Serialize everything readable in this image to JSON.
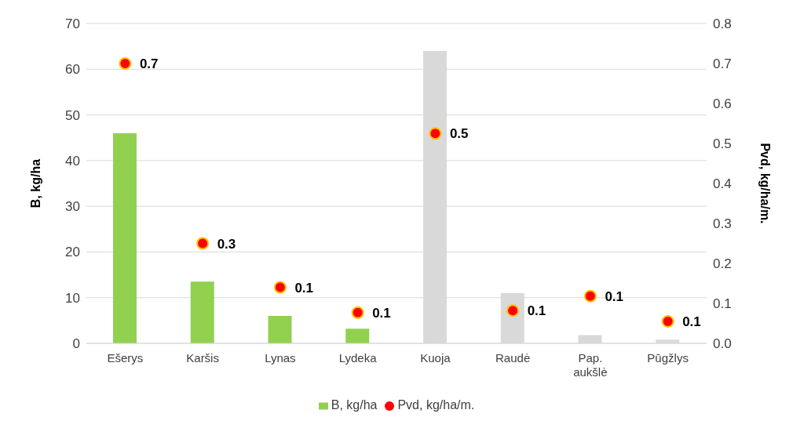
{
  "chart_data": {
    "type": "bar",
    "categories": [
      "Ešerys",
      "Karšis",
      "Lynas",
      "Lydeka",
      "Kuoja",
      "Raudė",
      "Pap. aukšlė",
      "Pūgžlys"
    ],
    "ylabel": "B, kg/ha",
    "y2label": "Pvd, kg/ha/m.",
    "ylim": [
      0,
      70
    ],
    "yticks": [
      0,
      10,
      20,
      30,
      40,
      50,
      60,
      70
    ],
    "y2lim": [
      0,
      0.8
    ],
    "y2ticks": [
      {
        "value": 0,
        "label": "0.0"
      },
      0.1,
      0.2,
      0.3,
      0.4,
      0.5,
      0.6,
      0.7,
      0.8
    ],
    "grid": "y",
    "legend": "bottom",
    "series": [
      {
        "name": "B, kg/ha",
        "color": "#92d050",
        "colors": [
          "#92d050",
          "#92d050",
          "#92d050",
          "#92d050",
          "#d9d9d9",
          "#d9d9d9",
          "#d9d9d9",
          "#d9d9d9"
        ],
        "values": [
          46,
          13.5,
          6,
          3.2,
          64,
          11,
          1.8,
          0.8
        ]
      },
      {
        "name": "Pvd, kg/ha/m.",
        "type": "scatter",
        "axis": "y2",
        "color": "#ff0000",
        "marker": "circle",
        "values": [
          0.7,
          0.25,
          0.14,
          0.077,
          0.525,
          0.082,
          0.118,
          0.055
        ],
        "value_labels": [
          "0.7",
          "0.3",
          "0.1",
          "0.1",
          "0.5",
          "0.1",
          "0.1",
          "0.1"
        ]
      }
    ]
  }
}
